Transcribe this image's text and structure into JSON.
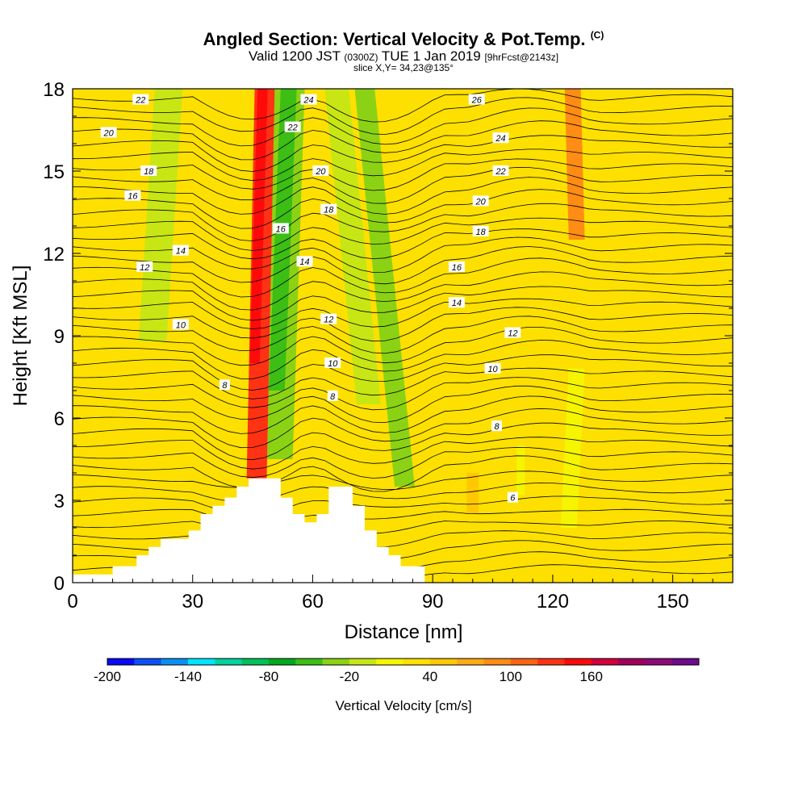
{
  "header": {
    "title": "Angled Section: Vertical Velocity & Pot.Temp.",
    "title_tag": "(C)",
    "valid_prefix": "Valid 1200 JST",
    "valid_utc": "(0300Z)",
    "valid_date": "TUE 1 Jan 2019",
    "forecast_tag": "[9hrFcst@2143z]",
    "slice_line": "slice X,Y= 34,23@135°"
  },
  "chart_data": {
    "type": "heatmap",
    "xlabel": "Distance [nm]",
    "ylabel": "Height [Kft MSL]",
    "xlim": [
      0,
      165
    ],
    "ylim": [
      0,
      18
    ],
    "x_ticks": [
      "0",
      "30",
      "60",
      "90",
      "120",
      "150"
    ],
    "y_ticks": [
      "0",
      "3",
      "6",
      "9",
      "12",
      "15",
      "18"
    ],
    "background_level": "0 to 20 cm/s",
    "velocity_bands": [
      {
        "x_top": 48,
        "x_bottom": 46,
        "width": 5,
        "top": 18,
        "bottom": 3.8,
        "value": 100
      },
      {
        "x_top": 47.5,
        "x_bottom": 45.5,
        "width": 2.5,
        "top": 18,
        "bottom": 8,
        "value": 120
      },
      {
        "x_top": 54,
        "x_bottom": 51,
        "width": 8,
        "top": 18,
        "bottom": 4.5,
        "value": -60
      },
      {
        "x_top": 54,
        "x_bottom": 51,
        "width": 4,
        "top": 18,
        "bottom": 7,
        "value": -80
      },
      {
        "x_top": 24,
        "x_bottom": 20,
        "width": 7,
        "top": 18,
        "bottom": 8.8,
        "value": -40
      },
      {
        "x_top": 66,
        "x_bottom": 74,
        "width": 6,
        "top": 18,
        "bottom": 6.5,
        "value": -40
      },
      {
        "x_top": 73,
        "x_bottom": 83,
        "width": 5,
        "top": 18,
        "bottom": 3.5,
        "value": -60
      },
      {
        "x_top": 125,
        "x_bottom": 126,
        "width": 4,
        "top": 18,
        "bottom": 12.5,
        "value": 60
      },
      {
        "x_top": 126,
        "x_bottom": 124,
        "width": 4,
        "top": 7.8,
        "bottom": 2,
        "value": -20
      },
      {
        "x_top": 112,
        "x_bottom": 112,
        "width": 2,
        "top": 5,
        "bottom": 3.2,
        "value": -20
      },
      {
        "x_top": 100,
        "x_bottom": 100,
        "width": 3,
        "top": 4,
        "bottom": 2.5,
        "value": 20
      }
    ],
    "terrain": [
      [
        10,
        0.6
      ],
      [
        16,
        0.6
      ],
      [
        16,
        1.0
      ],
      [
        19,
        1.0
      ],
      [
        19,
        1.3
      ],
      [
        22,
        1.3
      ],
      [
        22,
        1.6
      ],
      [
        29,
        1.6
      ],
      [
        29,
        1.9
      ],
      [
        32,
        1.9
      ],
      [
        32,
        2.5
      ],
      [
        35,
        2.5
      ],
      [
        35,
        2.8
      ],
      [
        38,
        2.8
      ],
      [
        38,
        3.1
      ],
      [
        41,
        3.1
      ],
      [
        41,
        3.5
      ],
      [
        44,
        3.5
      ],
      [
        44,
        3.8
      ],
      [
        52,
        3.8
      ],
      [
        52,
        3.1
      ],
      [
        55,
        3.1
      ],
      [
        55,
        2.5
      ],
      [
        58,
        2.5
      ],
      [
        58,
        2.2
      ],
      [
        61,
        2.2
      ],
      [
        61,
        2.5
      ],
      [
        64,
        2.5
      ],
      [
        64,
        3.5
      ],
      [
        70,
        3.5
      ],
      [
        70,
        2.8
      ],
      [
        73,
        2.8
      ],
      [
        73,
        1.9
      ],
      [
        76,
        1.9
      ],
      [
        76,
        1.3
      ],
      [
        79,
        1.3
      ],
      [
        79,
        1.0
      ],
      [
        82,
        1.0
      ],
      [
        82,
        0.6
      ],
      [
        88,
        0.6
      ],
      [
        88,
        0.3
      ]
    ],
    "theta_labels": [
      {
        "text": "22",
        "x": 17,
        "y": 17.6
      },
      {
        "text": "20",
        "x": 9,
        "y": 16.4
      },
      {
        "text": "18",
        "x": 19,
        "y": 15.0
      },
      {
        "text": "16",
        "x": 15,
        "y": 14.1
      },
      {
        "text": "14",
        "x": 27,
        "y": 12.1
      },
      {
        "text": "12",
        "x": 18,
        "y": 11.5
      },
      {
        "text": "10",
        "x": 27,
        "y": 9.4
      },
      {
        "text": "8",
        "x": 38,
        "y": 7.2
      },
      {
        "text": "24",
        "x": 59,
        "y": 17.6
      },
      {
        "text": "22",
        "x": 55,
        "y": 16.6
      },
      {
        "text": "20",
        "x": 62,
        "y": 15.0
      },
      {
        "text": "18",
        "x": 64,
        "y": 13.6
      },
      {
        "text": "16",
        "x": 52,
        "y": 12.9
      },
      {
        "text": "14",
        "x": 58,
        "y": 11.7
      },
      {
        "text": "12",
        "x": 64,
        "y": 9.6
      },
      {
        "text": "10",
        "x": 65,
        "y": 8.0
      },
      {
        "text": "8",
        "x": 65,
        "y": 6.8
      },
      {
        "text": "26",
        "x": 101,
        "y": 17.6
      },
      {
        "text": "24",
        "x": 107,
        "y": 16.2
      },
      {
        "text": "22",
        "x": 107,
        "y": 15.0
      },
      {
        "text": "20",
        "x": 102,
        "y": 13.9
      },
      {
        "text": "18",
        "x": 102,
        "y": 12.8
      },
      {
        "text": "16",
        "x": 96,
        "y": 11.5
      },
      {
        "text": "14",
        "x": 96,
        "y": 10.2
      },
      {
        "text": "12",
        "x": 110,
        "y": 9.1
      },
      {
        "text": "10",
        "x": 105,
        "y": 7.8
      },
      {
        "text": "8",
        "x": 106,
        "y": 5.7
      },
      {
        "text": "6",
        "x": 110,
        "y": 3.1
      }
    ]
  },
  "colorbar": {
    "label": "Vertical Velocity [cm/s]",
    "tick_labels": [
      "-200",
      "-140",
      "-80",
      "-20",
      "40",
      "100",
      "160"
    ],
    "colors": [
      "#0a0af5",
      "#0a50f5",
      "#0a90f5",
      "#00e5ff",
      "#00d2a0",
      "#00c05a",
      "#00aa1e",
      "#3cbe14",
      "#8cd214",
      "#c8e614",
      "#f5f500",
      "#ffe100",
      "#ffc800",
      "#ffaa14",
      "#ff8c14",
      "#ff6414",
      "#ff3214",
      "#ff0a0a",
      "#d2003c",
      "#a0005a",
      "#8c0a78",
      "#6e0a8c"
    ]
  }
}
